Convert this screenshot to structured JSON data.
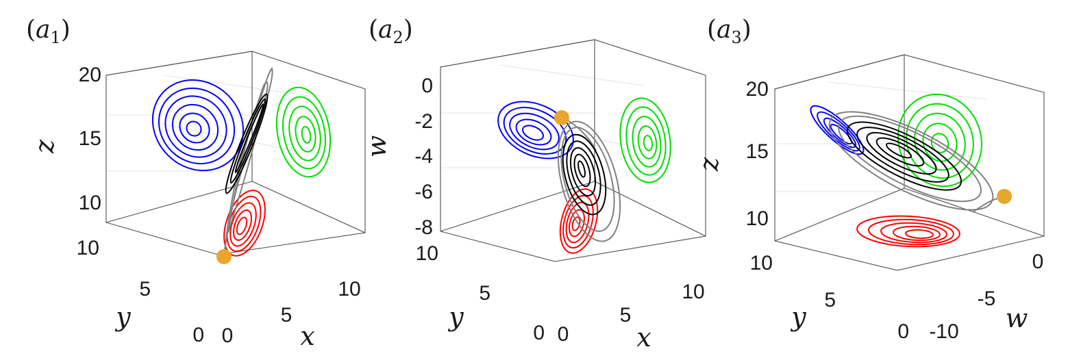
{
  "panels": [
    {
      "id": "a1",
      "label_letter": "a",
      "label_sub": "1",
      "z_axis_label": "z",
      "z_ticks": [
        "20",
        "15",
        "10"
      ],
      "y_axis_label": "y",
      "y_ticks": [
        "10",
        "5",
        "0"
      ],
      "x_axis_label": "x",
      "x_ticks": [
        "0",
        "5",
        "10"
      ]
    },
    {
      "id": "a2",
      "label_letter": "a",
      "label_sub": "2",
      "z_axis_label": "w",
      "z_ticks": [
        "0",
        "-2",
        "-4",
        "-6",
        "-8"
      ],
      "y_axis_label": "y",
      "y_ticks": [
        "10",
        "5",
        "0"
      ],
      "x_axis_label": "x",
      "x_ticks": [
        "0",
        "5",
        "10"
      ]
    },
    {
      "id": "a3",
      "label_letter": "a",
      "label_sub": "3",
      "z_axis_label": "z",
      "z_ticks": [
        "20",
        "15",
        "10"
      ],
      "y_axis_label": "y",
      "y_ticks": [
        "10",
        "5",
        "0"
      ],
      "x_axis_label": "w",
      "x_ticks": [
        "-10",
        "-5",
        "0"
      ]
    }
  ],
  "colors": {
    "projection_1": "#0000ff",
    "projection_2": "#00dd00",
    "projection_3": "#ff0000",
    "trajectory_transient": "#808080",
    "trajectory_attractor": "#000000",
    "initial_point": "#e9a62a",
    "axes_box": "#4d4d4d",
    "grid": "#dcdcdc"
  }
}
